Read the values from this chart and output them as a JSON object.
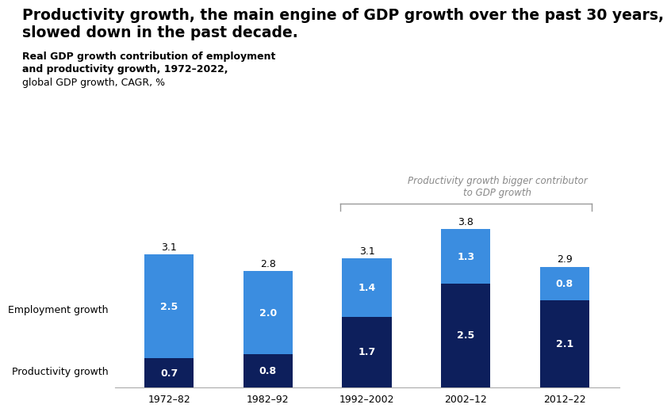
{
  "title_line1": "Productivity growth, the main engine of GDP growth over the past 30 years,",
  "title_line2": "slowed down in the past decade.",
  "subtitle_line1": "Real GDP growth contribution of employment",
  "subtitle_line2": "and productivity growth, 1972–2022,",
  "subtitle_line3": "global GDP growth, CAGR, %",
  "annotation_text": "Productivity growth bigger contributor\nto GDP growth",
  "categories": [
    "1972–82",
    "1982–92",
    "1992–2002",
    "2002–12",
    "2012–22"
  ],
  "productivity_values": [
    0.7,
    0.8,
    1.7,
    2.5,
    2.1
  ],
  "employment_values": [
    2.5,
    2.0,
    1.4,
    1.3,
    0.8
  ],
  "total_values": [
    3.1,
    2.8,
    3.1,
    3.8,
    2.9
  ],
  "color_productivity": "#0d1f5c",
  "color_employment": "#3b8de0",
  "color_background": "#ffffff",
  "ylabel_productivity": "Productivity growth",
  "ylabel_employment": "Employment growth",
  "bar_width": 0.5,
  "ylim": [
    0,
    4.6
  ],
  "title_fontsize": 13.5,
  "subtitle_fontsize": 9,
  "tick_fontsize": 9
}
